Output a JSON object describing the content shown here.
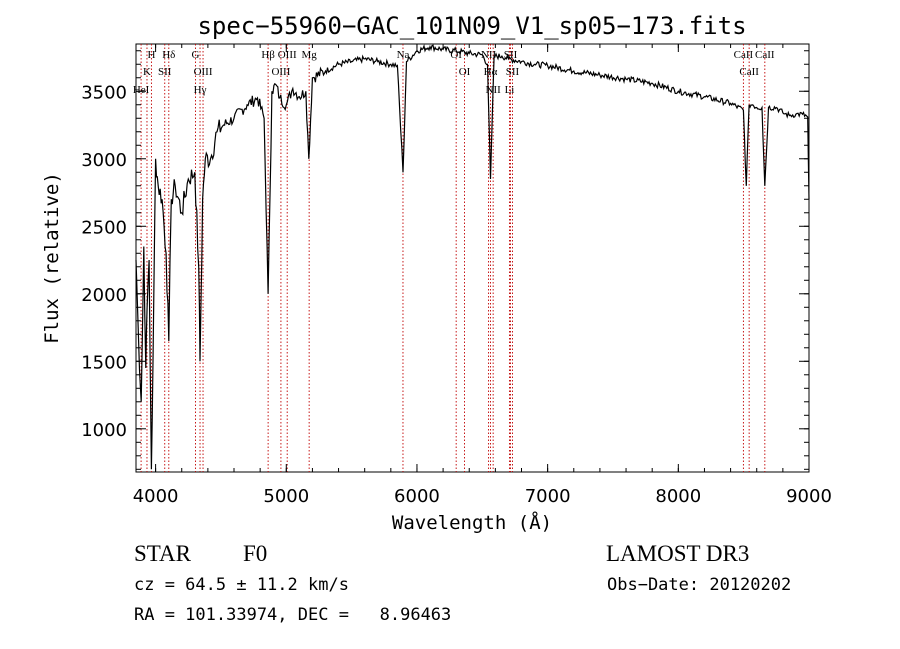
{
  "chart_data": {
    "type": "line",
    "title": "spec−55960−GAC_101N09_V1_sp05−173.fits",
    "xlabel": "Wavelength (Å)",
    "ylabel": "Flux (relative)",
    "xlim": [
      3850,
      9000
    ],
    "ylim": [
      680,
      3850
    ],
    "xticks": [
      4000,
      5000,
      6000,
      7000,
      8000,
      9000
    ],
    "xtick_labels": [
      "4000",
      "5000",
      "6000",
      "7000",
      "8000",
      "9000"
    ],
    "yticks": [
      1000,
      1500,
      2000,
      2500,
      3000,
      3500
    ],
    "ytick_labels": [
      "1000",
      "1500",
      "2000",
      "2500",
      "3000",
      "3500"
    ],
    "series": [
      {
        "name": "flux",
        "x": [
          3850,
          3870,
          3890,
          3910,
          3925,
          3935,
          3950,
          3968,
          3980,
          4000,
          4020,
          4050,
          4080,
          4101,
          4120,
          4150,
          4200,
          4250,
          4300,
          4330,
          4340,
          4360,
          4380,
          4420,
          4470,
          4520,
          4600,
          4700,
          4780,
          4830,
          4861,
          4890,
          4920,
          4950,
          5000,
          5050,
          5100,
          5150,
          5172,
          5200,
          5300,
          5400,
          5500,
          5600,
          5700,
          5800,
          5850,
          5893,
          5920,
          6000,
          6100,
          6200,
          6300,
          6400,
          6500,
          6540,
          6563,
          6590,
          6650,
          6700,
          6800,
          6900,
          7000,
          7200,
          7400,
          7600,
          7800,
          8000,
          8200,
          8400,
          8498,
          8520,
          8542,
          8570,
          8600,
          8640,
          8662,
          8690,
          8750,
          8800,
          8850,
          8900,
          8950,
          8990,
          9000
        ],
        "values": [
          2250,
          1650,
          1200,
          2350,
          1450,
          1900,
          2250,
          700,
          1500,
          3000,
          2800,
          2700,
          2300,
          1650,
          2700,
          2800,
          2600,
          2850,
          2900,
          2200,
          1500,
          2700,
          3000,
          3000,
          3200,
          3250,
          3300,
          3400,
          3450,
          3300,
          2000,
          3500,
          3550,
          3450,
          3400,
          3520,
          3460,
          3500,
          3000,
          3600,
          3650,
          3700,
          3720,
          3740,
          3720,
          3700,
          3690,
          2900,
          3720,
          3800,
          3830,
          3810,
          3800,
          3780,
          3770,
          3700,
          2850,
          3760,
          3760,
          3740,
          3720,
          3700,
          3690,
          3650,
          3620,
          3590,
          3560,
          3500,
          3460,
          3410,
          3360,
          2800,
          3400,
          3400,
          3380,
          3380,
          2800,
          3380,
          3380,
          3340,
          3320,
          3330,
          3330,
          3310,
          2700
        ]
      }
    ],
    "lines": [
      {
        "label": "H",
        "x": 3968
      },
      {
        "label": "K",
        "x": 3934
      },
      {
        "label": "HeI",
        "x": 3889
      },
      {
        "label": "Hδ",
        "x": 4101
      },
      {
        "label": "SII",
        "x": 4070
      },
      {
        "label": "G",
        "x": 4305
      },
      {
        "label": "OIII",
        "x": 4363
      },
      {
        "label": "Hγ",
        "x": 4340
      },
      {
        "label": "Hβ",
        "x": 4861
      },
      {
        "label": "OIII",
        "x": 4959
      },
      {
        "label": "OIII",
        "x": 5007
      },
      {
        "label": "Mg",
        "x": 5175
      },
      {
        "label": "Na",
        "x": 5893
      },
      {
        "label": "OI",
        "x": 6300
      },
      {
        "label": "OI",
        "x": 6364
      },
      {
        "label": "NII",
        "x": 6548
      },
      {
        "label": "Hα",
        "x": 6563
      },
      {
        "label": "NII",
        "x": 6583
      },
      {
        "label": "SII",
        "x": 6716
      },
      {
        "label": "SII",
        "x": 6731
      },
      {
        "label": "Li",
        "x": 6708
      },
      {
        "label": "CaII",
        "x": 8498
      },
      {
        "label": "CaII",
        "x": 8542
      },
      {
        "label": "CaII",
        "x": 8662
      }
    ]
  },
  "info": {
    "class_label": "STAR",
    "subclass_label": "F0",
    "survey_label": "LAMOST DR3",
    "redshift_text": "cz = 64.5 ± 11.2 km/s",
    "obs_date_text": "Obs−Date: 20120202",
    "coords_text": "RA = 101.33974, DEC =   8.96463"
  }
}
